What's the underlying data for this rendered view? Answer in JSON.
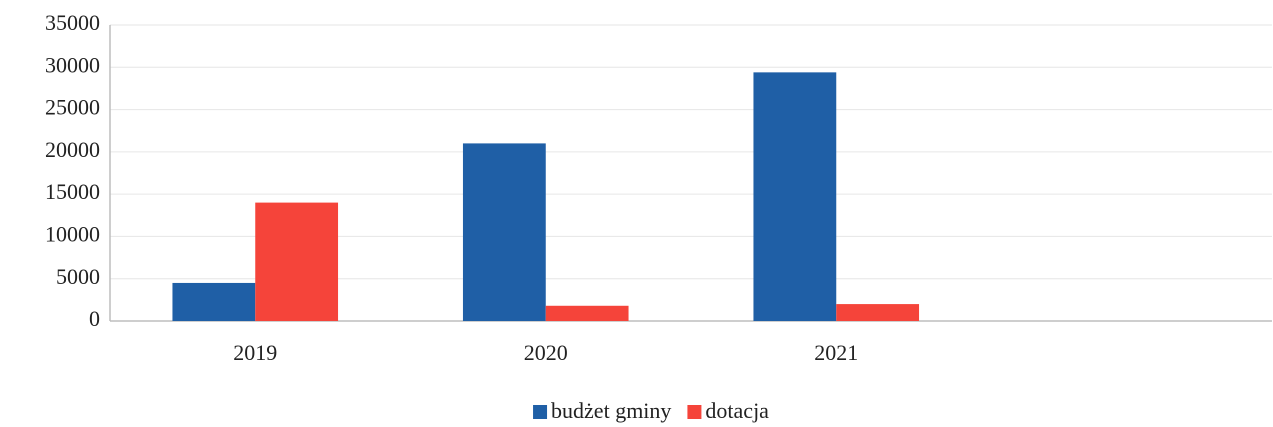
{
  "chart_data": {
    "type": "bar",
    "categories": [
      "2019",
      "2020",
      "2021",
      null
    ],
    "series": [
      {
        "name": "budżet gminy",
        "color": "#1f5fa6",
        "values": [
          4500,
          21000,
          29400,
          null
        ]
      },
      {
        "name": "dotacja",
        "color": "#f5443a",
        "values": [
          14000,
          1800,
          2000,
          null
        ]
      }
    ],
    "ylim": [
      0,
      35000
    ],
    "yticks": [
      0,
      5000,
      10000,
      15000,
      20000,
      25000,
      30000,
      35000
    ],
    "grid": true,
    "legend": "bottom"
  }
}
